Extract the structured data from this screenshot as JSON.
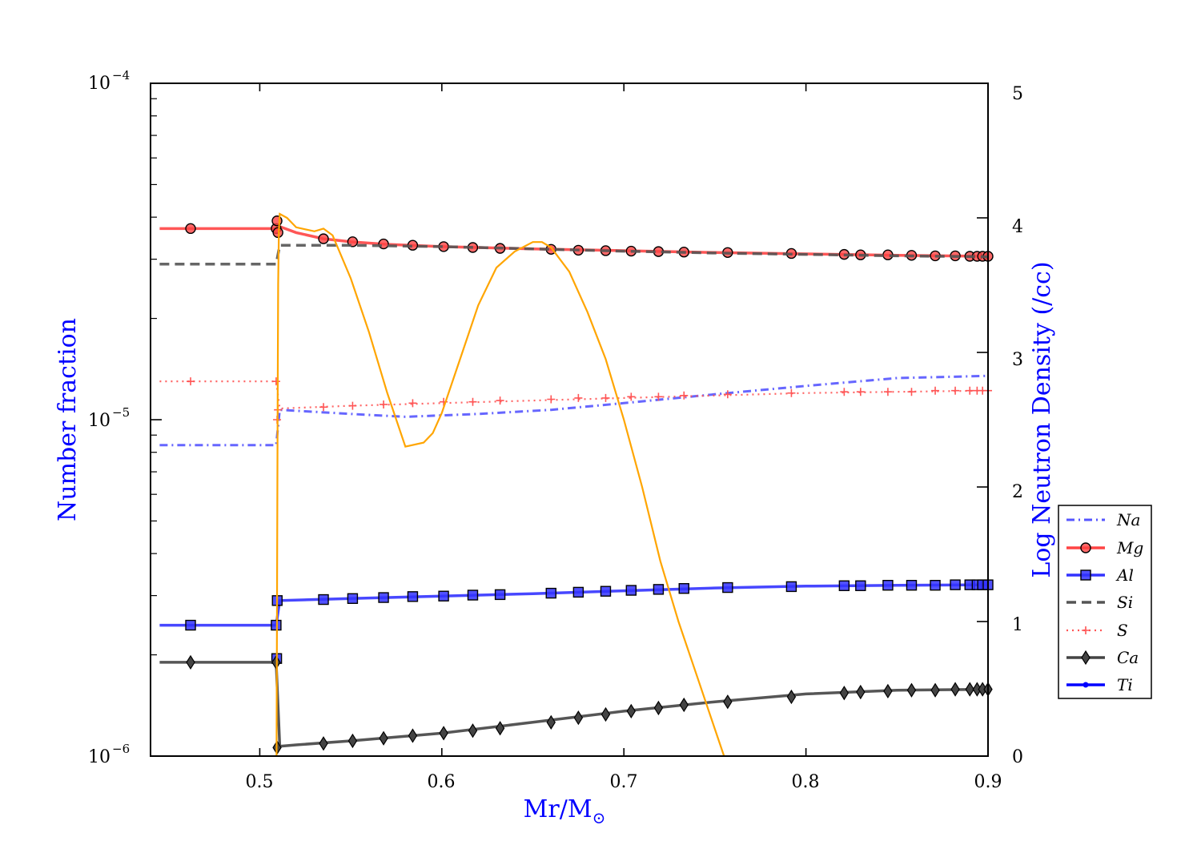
{
  "chart_data": {
    "type": "line",
    "xlabel": "Mr/M",
    "xlabel_subscript": "⊙",
    "ylabel_left": "Number fraction",
    "ylabel_right": "Log Neutron Density (/cc)",
    "xlim": [
      0.44,
      0.9
    ],
    "ylim_left": [
      1e-06,
      0.0001
    ],
    "ylim_right": [
      0,
      5
    ],
    "yscale_left": "log",
    "x_ticks": [
      "0.5",
      "0.6",
      "0.7",
      "0.8",
      "0.9"
    ],
    "y_left_ticks": [
      {
        "base": "10",
        "exp": "−4"
      },
      {
        "base": "10",
        "exp": "−5"
      },
      {
        "base": "10",
        "exp": "−6"
      }
    ],
    "y_right_ticks": [
      "0",
      "1",
      "2",
      "3",
      "4",
      "5"
    ],
    "legend_position": "right",
    "grid": false,
    "series": [
      {
        "name": "Na",
        "color": "#5555ff",
        "style": "dashdot",
        "marker": "none",
        "x": [
          0.445,
          0.509,
          0.511,
          0.55,
          0.58,
          0.62,
          0.66,
          0.7,
          0.75,
          0.8,
          0.85,
          0.9
        ],
        "y": [
          8.4e-06,
          8.4e-06,
          1.07e-05,
          1.04e-05,
          1.02e-05,
          1.04e-05,
          1.07e-05,
          1.12e-05,
          1.19e-05,
          1.26e-05,
          1.33e-05,
          1.35e-05
        ]
      },
      {
        "name": "Mg",
        "color": "#ff4444",
        "style": "solid",
        "marker": "circle",
        "x": [
          0.445,
          0.509,
          0.511,
          0.52,
          0.535,
          0.55,
          0.57,
          0.6,
          0.65,
          0.7,
          0.75,
          0.8,
          0.85,
          0.9
        ],
        "y": [
          3.7e-05,
          3.7e-05,
          3.75e-05,
          3.6e-05,
          3.45e-05,
          3.38e-05,
          3.32e-05,
          3.27e-05,
          3.22e-05,
          3.18e-05,
          3.14e-05,
          3.11e-05,
          3.08e-05,
          3.06e-05
        ],
        "marker_x": [
          0.462,
          0.509,
          0.5095,
          0.51,
          0.535,
          0.551,
          0.568,
          0.584,
          0.601,
          0.617,
          0.632,
          0.66,
          0.675,
          0.69,
          0.704,
          0.719,
          0.733,
          0.757,
          0.792,
          0.821,
          0.83,
          0.845,
          0.858,
          0.871,
          0.882,
          0.89,
          0.894,
          0.897,
          0.9
        ],
        "marker_y": [
          3.7e-05,
          3.7e-05,
          3.9e-05,
          3.6e-05,
          3.45e-05,
          3.38e-05,
          3.33e-05,
          3.3e-05,
          3.27e-05,
          3.25e-05,
          3.23e-05,
          3.21e-05,
          3.19e-05,
          3.18e-05,
          3.17e-05,
          3.16e-05,
          3.15e-05,
          3.14e-05,
          3.12e-05,
          3.1e-05,
          3.09e-05,
          3.09e-05,
          3.08e-05,
          3.07e-05,
          3.07e-05,
          3.06e-05,
          3.06e-05,
          3.06e-05,
          3.06e-05
        ]
      },
      {
        "name": "Al",
        "color": "#3333ff",
        "style": "solid",
        "marker": "square",
        "x": [
          0.445,
          0.509,
          0.511,
          0.55,
          0.6,
          0.65,
          0.7,
          0.75,
          0.8,
          0.85,
          0.9
        ],
        "y": [
          2.45e-06,
          2.45e-06,
          2.9e-06,
          2.94e-06,
          2.99e-06,
          3.04e-06,
          3.1e-06,
          3.16e-06,
          3.2e-06,
          3.22e-06,
          3.23e-06
        ],
        "marker_x": [
          0.462,
          0.509,
          0.5093,
          0.5096,
          0.535,
          0.551,
          0.568,
          0.584,
          0.601,
          0.617,
          0.632,
          0.66,
          0.675,
          0.69,
          0.704,
          0.719,
          0.733,
          0.757,
          0.792,
          0.821,
          0.83,
          0.845,
          0.858,
          0.871,
          0.882,
          0.89,
          0.894,
          0.897,
          0.9
        ],
        "marker_y": [
          2.45e-06,
          2.45e-06,
          1.95e-06,
          2.9e-06,
          2.92e-06,
          2.94e-06,
          2.96e-06,
          2.98e-06,
          2.99e-06,
          3.01e-06,
          3.02e-06,
          3.05e-06,
          3.07e-06,
          3.09e-06,
          3.11e-06,
          3.13e-06,
          3.15e-06,
          3.17e-06,
          3.19e-06,
          3.21e-06,
          3.21e-06,
          3.22e-06,
          3.22e-06,
          3.22e-06,
          3.23e-06,
          3.23e-06,
          3.23e-06,
          3.23e-06,
          3.23e-06
        ]
      },
      {
        "name": "Si",
        "color": "#555555",
        "style": "dashed",
        "marker": "none",
        "x": [
          0.445,
          0.509,
          0.511,
          0.55,
          0.6,
          0.65,
          0.7,
          0.75,
          0.8,
          0.85,
          0.9
        ],
        "y": [
          2.9e-05,
          2.9e-05,
          3.3e-05,
          3.3e-05,
          3.27e-05,
          3.22e-05,
          3.17e-05,
          3.13e-05,
          3.1e-05,
          3.07e-05,
          3.05e-05
        ]
      },
      {
        "name": "S",
        "color": "#ff5555",
        "style": "dotted",
        "marker": "plus",
        "x": [
          0.445,
          0.509,
          0.511,
          0.55,
          0.6,
          0.65,
          0.7,
          0.75,
          0.8,
          0.85,
          0.9
        ],
        "y": [
          1.3e-05,
          1.3e-05,
          1.08e-05,
          1.1e-05,
          1.12e-05,
          1.14e-05,
          1.16e-05,
          1.18e-05,
          1.2e-05,
          1.21e-05,
          1.22e-05
        ],
        "marker_x": [
          0.462,
          0.509,
          0.5095,
          0.51,
          0.535,
          0.551,
          0.568,
          0.584,
          0.601,
          0.617,
          0.632,
          0.66,
          0.675,
          0.69,
          0.704,
          0.719,
          0.733,
          0.757,
          0.792,
          0.821,
          0.83,
          0.845,
          0.858,
          0.871,
          0.882,
          0.89,
          0.894,
          0.897,
          0.9
        ],
        "marker_y": [
          1.3e-05,
          1.3e-05,
          1e-05,
          1.07e-05,
          1.09e-05,
          1.1e-05,
          1.11e-05,
          1.12e-05,
          1.13e-05,
          1.13e-05,
          1.14e-05,
          1.15e-05,
          1.16e-05,
          1.16e-05,
          1.17e-05,
          1.17e-05,
          1.18e-05,
          1.19e-05,
          1.2e-05,
          1.21e-05,
          1.21e-05,
          1.21e-05,
          1.21e-05,
          1.22e-05,
          1.22e-05,
          1.22e-05,
          1.22e-05,
          1.22e-05,
          1.22e-05
        ]
      },
      {
        "name": "Ca",
        "color": "#444444",
        "style": "solid",
        "marker": "diamond",
        "x": [
          0.445,
          0.509,
          0.511,
          0.52,
          0.55,
          0.6,
          0.65,
          0.7,
          0.75,
          0.8,
          0.85,
          0.9
        ],
        "y": [
          1.9e-06,
          1.9e-06,
          1.07e-06,
          1.08e-06,
          1.11e-06,
          1.17e-06,
          1.26e-06,
          1.36e-06,
          1.45e-06,
          1.53e-06,
          1.57e-06,
          1.58e-06
        ],
        "marker_x": [
          0.462,
          0.509,
          0.5095,
          0.535,
          0.551,
          0.568,
          0.584,
          0.601,
          0.617,
          0.632,
          0.66,
          0.675,
          0.69,
          0.704,
          0.719,
          0.733,
          0.757,
          0.792,
          0.821,
          0.83,
          0.845,
          0.858,
          0.871,
          0.882,
          0.89,
          0.894,
          0.897,
          0.9
        ],
        "marker_y": [
          1.9e-06,
          1.9e-06,
          1.06e-06,
          1.09e-06,
          1.11e-06,
          1.13e-06,
          1.15e-06,
          1.17e-06,
          1.19e-06,
          1.21e-06,
          1.26e-06,
          1.3e-06,
          1.33e-06,
          1.36e-06,
          1.39e-06,
          1.42e-06,
          1.45e-06,
          1.5e-06,
          1.54e-06,
          1.55e-06,
          1.56e-06,
          1.57e-06,
          1.57e-06,
          1.58e-06,
          1.58e-06,
          1.58e-06,
          1.58e-06,
          1.58e-06
        ]
      },
      {
        "name": "Ti",
        "color": "#0000ff",
        "style": "solid",
        "marker": "dot",
        "x": [],
        "y": []
      }
    ],
    "neutron_density": {
      "color": "#ffa500",
      "axis": "right",
      "x": [
        0.5092,
        0.5098,
        0.5101,
        0.5105,
        0.511,
        0.515,
        0.52,
        0.53,
        0.535,
        0.54,
        0.55,
        0.56,
        0.57,
        0.58,
        0.59,
        0.595,
        0.6,
        0.61,
        0.62,
        0.63,
        0.64,
        0.65,
        0.655,
        0.66,
        0.67,
        0.68,
        0.69,
        0.7,
        0.71,
        0.72,
        0.73,
        0.74,
        0.75,
        0.755
      ],
      "y": [
        0.0,
        2.5,
        3.5,
        3.9,
        4.03,
        4.0,
        3.93,
        3.9,
        3.92,
        3.87,
        3.55,
        3.15,
        2.7,
        2.3,
        2.33,
        2.4,
        2.55,
        2.95,
        3.35,
        3.63,
        3.75,
        3.82,
        3.82,
        3.78,
        3.6,
        3.3,
        2.95,
        2.5,
        2.0,
        1.45,
        1.0,
        0.6,
        0.2,
        0.0
      ]
    }
  }
}
